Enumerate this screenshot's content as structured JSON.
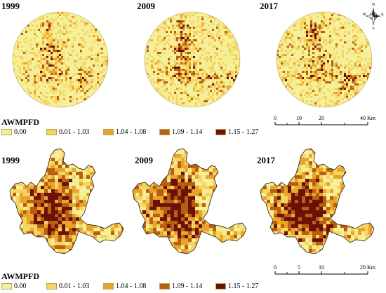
{
  "years": [
    "1999",
    "2009",
    "2017"
  ],
  "legend_title": "AWMPFD",
  "legend_classes": [
    {
      "label": "0.00",
      "color": "#f6ef9a"
    },
    {
      "label": "0.01 - 1.03",
      "color": "#f4d560"
    },
    {
      "label": "1.04 - 1.08",
      "color": "#e9a52a"
    },
    {
      "label": "1.09 - 1.14",
      "color": "#b95e13"
    },
    {
      "label": "1.15 - 1.27",
      "color": "#6b1108"
    }
  ],
  "compass": {
    "n": "N",
    "s": "S",
    "e": "E",
    "w": "W"
  },
  "scale_top": {
    "ticks": [
      "0",
      "10",
      "20"
    ],
    "end_label": "40 Km"
  },
  "scale_bottom": {
    "ticks": [
      "0",
      "5",
      "10"
    ],
    "end_label": "20 Km"
  }
}
